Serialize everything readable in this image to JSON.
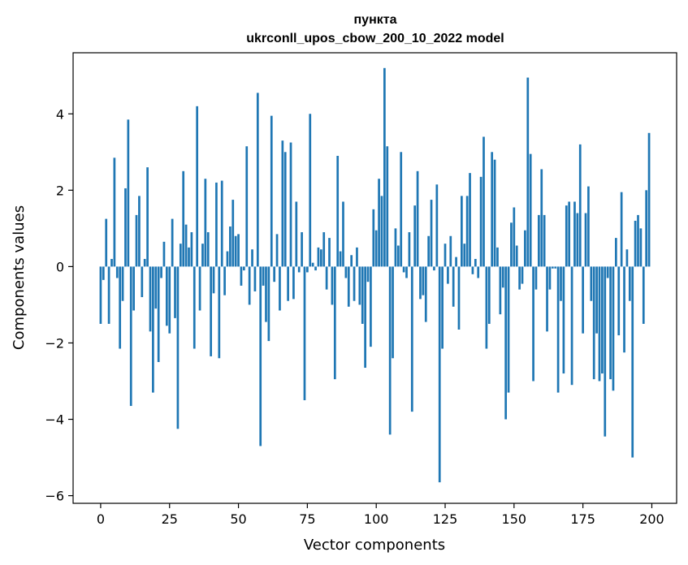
{
  "chart_data": {
    "type": "bar",
    "title": "пункта",
    "subtitle": "ukrconll_upos_cbow_200_10_2022 model",
    "xlabel": "Vector components",
    "ylabel": "Components values",
    "xlim": [
      -10,
      209
    ],
    "ylim": [
      -6.2,
      5.6
    ],
    "xticks": [
      0,
      25,
      50,
      75,
      100,
      125,
      150,
      175,
      200
    ],
    "yticks": [
      -6,
      -4,
      -2,
      0,
      2,
      4
    ],
    "ytick_labels": [
      "−6",
      "−4",
      "−2",
      "0",
      "2",
      "4"
    ],
    "grid": false,
    "color": "#1f77b4",
    "x": [
      0,
      1,
      2,
      3,
      4,
      5,
      6,
      7,
      8,
      9,
      10,
      11,
      12,
      13,
      14,
      15,
      16,
      17,
      18,
      19,
      20,
      21,
      22,
      23,
      24,
      25,
      26,
      27,
      28,
      29,
      30,
      31,
      32,
      33,
      34,
      35,
      36,
      37,
      38,
      39,
      40,
      41,
      42,
      43,
      44,
      45,
      46,
      47,
      48,
      49,
      50,
      51,
      52,
      53,
      54,
      55,
      56,
      57,
      58,
      59,
      60,
      61,
      62,
      63,
      64,
      65,
      66,
      67,
      68,
      69,
      70,
      71,
      72,
      73,
      74,
      75,
      76,
      77,
      78,
      79,
      80,
      81,
      82,
      83,
      84,
      85,
      86,
      87,
      88,
      89,
      90,
      91,
      92,
      93,
      94,
      95,
      96,
      97,
      98,
      99,
      100,
      101,
      102,
      103,
      104,
      105,
      106,
      107,
      108,
      109,
      110,
      111,
      112,
      113,
      114,
      115,
      116,
      117,
      118,
      119,
      120,
      121,
      122,
      123,
      124,
      125,
      126,
      127,
      128,
      129,
      130,
      131,
      132,
      133,
      134,
      135,
      136,
      137,
      138,
      139,
      140,
      141,
      142,
      143,
      144,
      145,
      146,
      147,
      148,
      149,
      150,
      151,
      152,
      153,
      154,
      155,
      156,
      157,
      158,
      159,
      160,
      161,
      162,
      163,
      164,
      165,
      166,
      167,
      168,
      169,
      170,
      171,
      172,
      173,
      174,
      175,
      176,
      177,
      178,
      179,
      180,
      181,
      182,
      183,
      184,
      185,
      186,
      187,
      188,
      189,
      190,
      191,
      192,
      193,
      194,
      195,
      196,
      197,
      198,
      199
    ],
    "values": [
      -1.5,
      -0.35,
      1.25,
      -1.5,
      0.2,
      2.85,
      -0.3,
      -2.15,
      -0.9,
      2.05,
      3.85,
      -3.65,
      -1.15,
      1.35,
      1.85,
      -0.8,
      0.2,
      2.6,
      -1.7,
      -3.3,
      -1.1,
      -2.5,
      -0.3,
      0.65,
      -1.55,
      -1.75,
      1.25,
      -1.35,
      -4.25,
      0.6,
      2.5,
      1.1,
      0.5,
      0.9,
      -2.15,
      4.2,
      -1.15,
      0.6,
      2.3,
      0.9,
      -2.35,
      -0.7,
      2.2,
      -2.4,
      2.25,
      -0.75,
      0.4,
      1.05,
      1.75,
      0.8,
      0.85,
      -0.5,
      -0.1,
      3.15,
      -1.0,
      0.45,
      -0.65,
      4.55,
      -4.7,
      -0.5,
      -1.45,
      -1.95,
      3.95,
      -0.4,
      0.85,
      -1.15,
      3.3,
      3.0,
      -0.9,
      3.25,
      -0.85,
      1.7,
      -0.15,
      0.9,
      -3.5,
      -0.15,
      4.0,
      0.1,
      -0.1,
      0.5,
      0.45,
      0.9,
      -0.6,
      0.75,
      -1.0,
      -2.95,
      2.9,
      0.4,
      1.7,
      -0.3,
      -1.05,
      0.3,
      -0.9,
      0.5,
      -1.0,
      -1.5,
      -2.65,
      -0.4,
      -2.1,
      1.5,
      0.95,
      2.3,
      1.85,
      5.2,
      3.15,
      -4.4,
      -2.4,
      1.0,
      0.55,
      3.0,
      -0.15,
      -0.3,
      0.9,
      -3.8,
      1.6,
      2.5,
      -0.85,
      -0.75,
      -1.45,
      0.8,
      1.75,
      -0.1,
      2.15,
      -5.65,
      -2.15,
      0.6,
      -0.45,
      0.8,
      -1.05,
      0.25,
      -1.65,
      1.85,
      0.6,
      1.85,
      2.45,
      -0.2,
      0.2,
      -0.3,
      2.35,
      3.4,
      -2.15,
      -1.5,
      3.0,
      2.8,
      0.5,
      -1.25,
      -0.55,
      -4.0,
      -3.3,
      1.15,
      1.55,
      0.55,
      -0.6,
      -0.45,
      0.95,
      4.95,
      2.95,
      -3.0,
      -0.6,
      1.35,
      2.55,
      1.35,
      -1.7,
      -0.6,
      -0.05,
      -0.05,
      -3.3,
      -0.9,
      -2.8,
      1.6,
      1.7,
      -3.1,
      1.7,
      1.4,
      3.2,
      -1.75,
      1.4,
      2.1,
      -0.9,
      -2.95,
      -1.75,
      -3.0,
      -2.8,
      -4.45,
      -0.3,
      -2.95,
      -3.25,
      0.75,
      -1.8,
      1.95,
      -2.25,
      0.45,
      -0.9,
      -5.0,
      1.2,
      1.35,
      1.0,
      -1.5,
      2.0,
      3.5
    ]
  }
}
